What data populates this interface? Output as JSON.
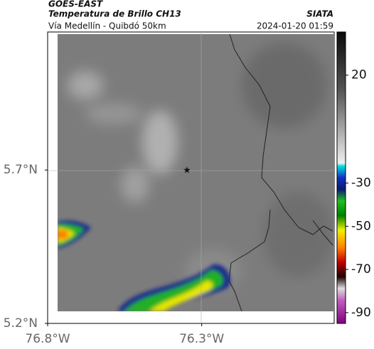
{
  "header": {
    "source": "GOES-EAST",
    "product": "Temperatura de Brillo CH13",
    "agency": "SIATA",
    "route": "Vía Medellín - Quibdó 50km",
    "datetime": "2024-01-20 01:59"
  },
  "map": {
    "xlim": [
      -76.8,
      -75.87
    ],
    "ylim": [
      5.2,
      6.15
    ],
    "xticks": [
      {
        "value": -76.8,
        "label": "76.8°W"
      },
      {
        "value": -76.3,
        "label": "76.3°W"
      }
    ],
    "yticks": [
      {
        "value": 5.7,
        "label": "5.7°N"
      },
      {
        "value": 5.2,
        "label": "5.2°N"
      }
    ]
  },
  "colorbar": {
    "lim": [
      40,
      -95
    ],
    "ticks": [
      20,
      -30,
      -50,
      -70,
      -90
    ]
  }
}
